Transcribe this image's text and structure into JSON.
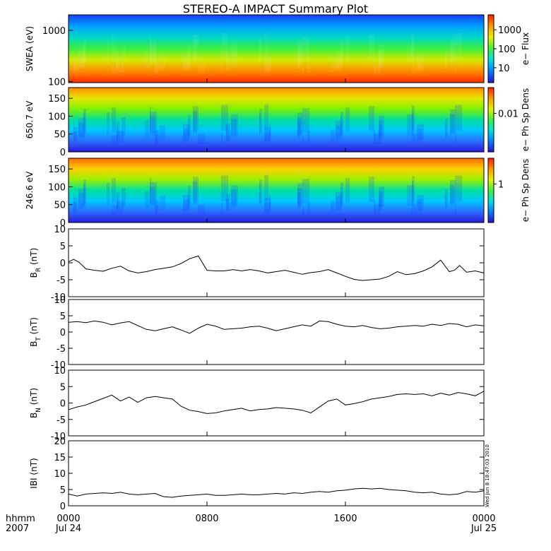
{
  "title": "STEREO-A IMPACT Summary Plot",
  "footer": {
    "corner_top": "hhmm",
    "corner_bottom": "2007",
    "side_stamp": "Wed Jun  8 18:47:03 2010"
  },
  "chart_data": {
    "type": "line",
    "x_axis": {
      "ticks": [
        {
          "top": "0000",
          "bottom": "Jul 24"
        },
        {
          "top": "0800",
          "bottom": ""
        },
        {
          "top": "1600",
          "bottom": ""
        },
        {
          "top": "0000",
          "bottom": "Jul 25"
        }
      ],
      "range_hours": [
        0,
        24
      ]
    },
    "spectrograms": [
      {
        "ylabel": "SWEA (eV)",
        "yscale": "log",
        "ylim": [
          95,
          2000
        ],
        "yticks": [
          "1000",
          "100"
        ],
        "colorbar_label": "e− Flux",
        "colorbar_ticks": [
          "1000",
          "100",
          "10"
        ],
        "colors": [
          "#ff2a00",
          "#ff8a00",
          "#d6e800",
          "#3cf03c",
          "#00d8c8",
          "#00a0ff",
          "#1a3cff"
        ]
      },
      {
        "ylabel": "650.7 eV",
        "yscale": "linear",
        "ylim": [
          0,
          180
        ],
        "yticks": [
          "150",
          "100",
          "50",
          "0"
        ],
        "colorbar_label": "e− Ph Sp Dens",
        "colorbar_ticks": [
          "0.01"
        ],
        "colors": [
          "#ff8a00",
          "#e6e600",
          "#7ff000",
          "#00e0a0",
          "#00c8ff",
          "#2a6cff",
          "#2a1adc"
        ]
      },
      {
        "ylabel": "246.6 eV",
        "yscale": "linear",
        "ylim": [
          0,
          180
        ],
        "yticks": [
          "150",
          "100",
          "50",
          "0"
        ],
        "colorbar_label": "e− Ph Sp Dens",
        "colorbar_ticks": [
          "1"
        ],
        "colors": [
          "#ff6a00",
          "#ffd000",
          "#9af000",
          "#00e0a0",
          "#00c8ff",
          "#2a6cff",
          "#2a1adc"
        ]
      }
    ],
    "series": [
      {
        "ylabel": "B_R (nT)",
        "label_main": "B",
        "label_sub": "R",
        "label_unit": " (nT)",
        "ylim": [
          -10,
          10
        ],
        "yticks": [
          "10",
          "5",
          "0",
          "-5",
          "-10"
        ],
        "x": [
          0,
          0.3,
          0.6,
          1,
          1.5,
          2,
          2.5,
          3,
          3.5,
          4,
          4.5,
          5,
          5.5,
          6,
          6.5,
          7,
          7.5,
          8,
          8.5,
          9,
          9.5,
          10,
          10.5,
          11,
          11.5,
          12,
          12.5,
          13,
          13.5,
          14,
          14.5,
          15,
          15.5,
          16,
          16.5,
          17,
          17.5,
          18,
          18.5,
          19,
          19.5,
          20,
          20.5,
          21,
          21.5,
          22,
          22.3,
          22.6,
          23,
          23.5,
          24
        ],
        "values": [
          0.3,
          1,
          0.2,
          -1.8,
          -2.2,
          -2.5,
          -1.6,
          -1,
          -2.4,
          -3,
          -2.6,
          -2,
          -1.6,
          -1.2,
          -0.2,
          1.2,
          2,
          -2.2,
          -2.4,
          -2.4,
          -2,
          -2.4,
          -2,
          -2.4,
          -3,
          -2.6,
          -2.2,
          -2.8,
          -3.4,
          -2.9,
          -2.6,
          -2,
          -3,
          -4,
          -4.9,
          -5.2,
          -5,
          -4.8,
          -4,
          -2.6,
          -3.5,
          -3.2,
          -2.4,
          -1.2,
          0.8,
          -2.6,
          -2.2,
          -0.8,
          -2.8,
          -2.4,
          -3
        ]
      },
      {
        "ylabel": "B_T (nT)",
        "label_main": "B",
        "label_sub": "T",
        "label_unit": " (nT)",
        "ylim": [
          -10,
          10
        ],
        "yticks": [
          "10",
          "5",
          "0",
          "-5",
          "-10"
        ],
        "x": [
          0,
          0.5,
          1,
          1.5,
          2,
          2.5,
          3,
          3.5,
          4,
          4.5,
          5,
          5.5,
          6,
          6.5,
          7,
          7.5,
          8,
          8.5,
          9,
          9.5,
          10,
          10.5,
          11,
          11.5,
          12,
          12.5,
          13,
          13.5,
          14,
          14.5,
          15,
          15.5,
          16,
          16.5,
          17,
          17.5,
          18,
          18.5,
          19,
          19.5,
          20,
          20.5,
          21,
          21.5,
          22,
          22.5,
          23,
          23.5,
          24
        ],
        "values": [
          3,
          3.2,
          2.9,
          3.4,
          3,
          2.2,
          2.8,
          3.2,
          2,
          0.8,
          0.4,
          1,
          1.6,
          0.6,
          -0.4,
          1.2,
          2.4,
          1.8,
          0.8,
          1,
          1.2,
          1.6,
          1.8,
          1.2,
          0.4,
          1,
          1.6,
          2.2,
          1.8,
          3.4,
          3.2,
          2.4,
          1.8,
          1.6,
          2,
          1.4,
          1,
          1.2,
          1.6,
          1.8,
          2,
          1.8,
          2.4,
          2,
          2.6,
          2.4,
          1.6,
          2.2,
          1.9
        ]
      },
      {
        "ylabel": "B_N (nT)",
        "label_main": "B",
        "label_sub": "N",
        "label_unit": " (nT)",
        "ylim": [
          -10,
          10
        ],
        "yticks": [
          "10",
          "5",
          "0",
          "-5",
          "-10"
        ],
        "x": [
          0,
          0.5,
          1,
          1.5,
          2,
          2.5,
          3,
          3.5,
          4,
          4.5,
          5,
          5.5,
          6,
          6.5,
          7,
          7.5,
          8,
          8.5,
          9,
          9.5,
          10,
          10.5,
          11,
          11.5,
          12,
          12.5,
          13,
          13.5,
          14,
          14.5,
          15,
          15.5,
          16,
          16.5,
          17,
          17.5,
          18,
          18.5,
          19,
          19.5,
          20,
          20.5,
          21,
          21.5,
          22,
          22.5,
          23,
          23.5,
          24
        ],
        "values": [
          -2,
          -1.2,
          -0.6,
          0.4,
          1.4,
          2.4,
          0.6,
          1.8,
          0.2,
          1.6,
          2,
          1.6,
          1.2,
          -1,
          -2.2,
          -2.6,
          -3.2,
          -3,
          -2.4,
          -2,
          -1.6,
          -2.4,
          -2,
          -1.8,
          -1.4,
          -1.6,
          -1.8,
          -2.2,
          -3,
          -1.2,
          0.6,
          1.2,
          -0.6,
          -0.2,
          0.4,
          1.2,
          1.6,
          2,
          2.6,
          2.8,
          2.6,
          2.8,
          2.2,
          3,
          2.4,
          3.2,
          2.8,
          2.2,
          3.6
        ]
      },
      {
        "ylabel": "|B| (nT)",
        "label_main": "IBI",
        "label_sub": "",
        "label_unit": " (nT)",
        "ylim": [
          0,
          20
        ],
        "yticks": [
          "20",
          "15",
          "10",
          "5",
          "0"
        ],
        "x": [
          0,
          0.5,
          1,
          1.5,
          2,
          2.5,
          3,
          3.5,
          4,
          4.5,
          5,
          5.5,
          6,
          6.5,
          7,
          7.5,
          8,
          8.5,
          9,
          9.5,
          10,
          10.5,
          11,
          11.5,
          12,
          12.5,
          13,
          13.5,
          14,
          14.5,
          15,
          15.5,
          16,
          16.5,
          17,
          17.5,
          18,
          18.5,
          19,
          19.5,
          20,
          20.5,
          21,
          21.5,
          22,
          22.5,
          23,
          23.5,
          24
        ],
        "values": [
          3.6,
          3,
          3.6,
          3.8,
          4,
          3.8,
          4.2,
          3.6,
          3.4,
          3.6,
          3.8,
          2.8,
          2.6,
          3,
          3.2,
          3.4,
          3.6,
          3.2,
          3.2,
          3.4,
          3.6,
          3.4,
          3.4,
          3.6,
          3.8,
          3.6,
          4,
          3.8,
          4.2,
          4.4,
          4.2,
          4.6,
          4.8,
          5.2,
          5.4,
          5.2,
          5.4,
          5,
          4.8,
          4.6,
          4.2,
          4,
          4.2,
          3.6,
          3.4,
          3.6,
          4.4,
          4.2,
          4.6
        ]
      }
    ]
  }
}
